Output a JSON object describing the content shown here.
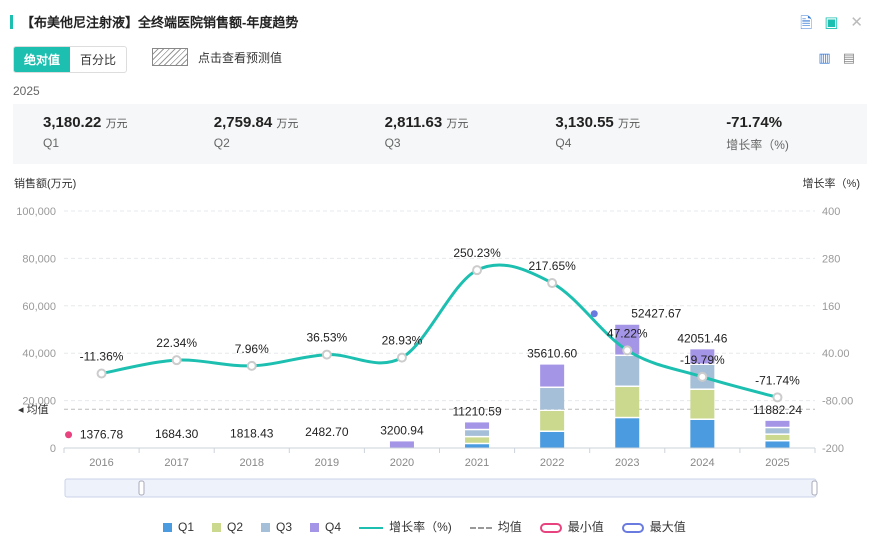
{
  "header": {
    "title": "【布美他尼注射液】全终端医院销售额-年度趋势",
    "icons": [
      "excel-export-icon",
      "image-export-icon",
      "close-icon"
    ]
  },
  "toolbar": {
    "absolute_label": "绝对值",
    "percent_label": "百分比",
    "forecast_label": "点击查看预测值",
    "icons": [
      "bar-chart-icon",
      "document-icon"
    ]
  },
  "summary": {
    "year": "2025",
    "unit": "万元",
    "items": [
      {
        "value": "3,180.22",
        "label": "Q1"
      },
      {
        "value": "2,759.84",
        "label": "Q2"
      },
      {
        "value": "2,811.63",
        "label": "Q3"
      },
      {
        "value": "3,130.55",
        "label": "Q4"
      }
    ],
    "growth": {
      "value": "-71.74%",
      "label": "增长率（%)"
    }
  },
  "chart_data": {
    "type": "bar+line",
    "ylabel_left": "销售额(万元)",
    "ylabel_right": "增长率（%)",
    "categories": [
      "2016",
      "2017",
      "2018",
      "2019",
      "2020",
      "2021",
      "2022",
      "2023",
      "2024",
      "2025"
    ],
    "ylim_left": [
      0,
      100000
    ],
    "yticks_left": [
      "0",
      "20,000",
      "40,000",
      "60,000",
      "80,000",
      "100,000"
    ],
    "ylim_right": [
      -200,
      400
    ],
    "yticks_right": [
      "-200",
      "-80.00",
      "40.00",
      "160",
      "280",
      "400"
    ],
    "grid": true,
    "totals": [
      "1376.78",
      "1684.30",
      "1818.43",
      "2482.70",
      "3200.94",
      "11210.59",
      "35610.60",
      "52427.67",
      "42051.46",
      "11882.24"
    ],
    "series": [
      {
        "name": "Q1",
        "color": "#4a9be0",
        "values": [
          null,
          null,
          null,
          null,
          0,
          2000,
          7170,
          12950,
          12240,
          3180.22
        ]
      },
      {
        "name": "Q2",
        "color": "#cbd98f",
        "values": [
          null,
          null,
          null,
          null,
          0,
          2900,
          8860,
          13200,
          12660,
          2759.84
        ]
      },
      {
        "name": "Q3",
        "color": "#a6bfd9",
        "values": [
          null,
          null,
          null,
          null,
          0,
          3000,
          9700,
          13080,
          10550,
          2811.63
        ]
      },
      {
        "name": "Q4",
        "color": "#a595e6",
        "values": [
          null,
          null,
          null,
          null,
          3200.94,
          3310.59,
          9880.6,
          13197.67,
          6601.46,
          3130.55
        ]
      }
    ],
    "growth": {
      "name": "增长率（%)",
      "color": "#1dbfb0",
      "values": [
        -11.36,
        22.34,
        7.96,
        36.53,
        28.93,
        250.23,
        217.65,
        47.22,
        -19.79,
        -71.74
      ],
      "labels": [
        "-11.36%",
        "22.34%",
        "7.96%",
        "36.53%",
        "28.93%",
        "250.23%",
        "217.65%",
        "47.22%",
        "-19.79%",
        "-71.74%"
      ]
    },
    "average_label": "均值",
    "min_label": "最小值",
    "max_label": "最大值",
    "legend_position": "bottom"
  }
}
